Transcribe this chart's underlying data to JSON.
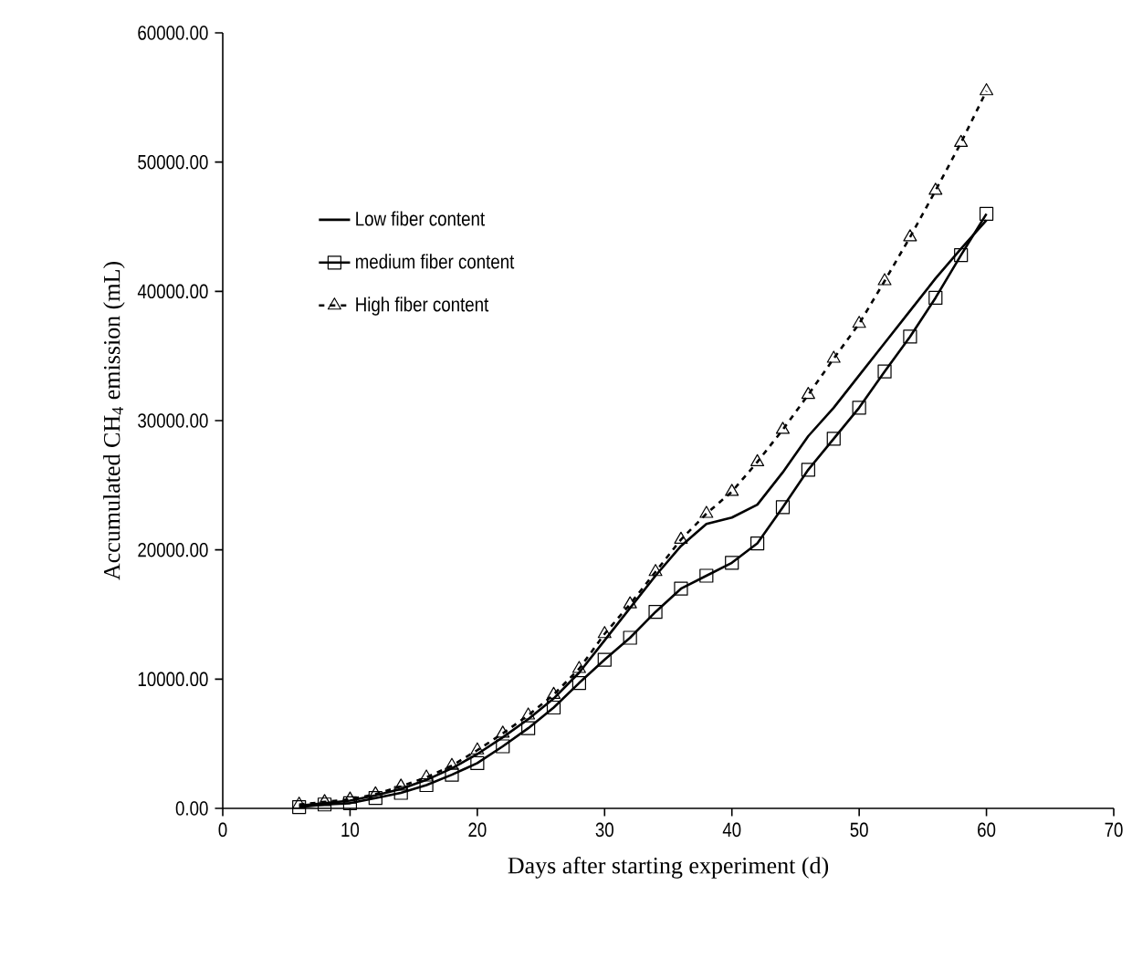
{
  "chart_data": {
    "type": "line",
    "xlabel": "Days after starting experiment (d)",
    "ylabel": "Accumulated CH$_{4}$ emission (mL)",
    "x": [
      6,
      8,
      10,
      12,
      14,
      16,
      18,
      20,
      22,
      24,
      26,
      28,
      30,
      32,
      34,
      36,
      38,
      40,
      42,
      44,
      46,
      48,
      50,
      52,
      54,
      56,
      58,
      60
    ],
    "series": [
      {
        "name": "Low fiber content",
        "color": "#000000",
        "marker": "none",
        "line_style": "solid",
        "values": [
          200,
          400,
          600,
          1000,
          1500,
          2200,
          3100,
          4200,
          5500,
          6900,
          8500,
          10500,
          13000,
          15500,
          18000,
          20300,
          22000,
          22500,
          23500,
          26000,
          28800,
          31000,
          33500,
          36000,
          38500,
          41000,
          43300,
          45500
        ]
      },
      {
        "name": "medium fiber content",
        "color": "#000000",
        "marker": "square",
        "line_style": "solid",
        "values": [
          100,
          300,
          400,
          800,
          1200,
          1800,
          2600,
          3500,
          4800,
          6200,
          7800,
          9700,
          11500,
          13200,
          15200,
          17000,
          18000,
          19000,
          20500,
          23300,
          26200,
          28600,
          31000,
          33800,
          36500,
          39500,
          42800,
          46000
        ]
      },
      {
        "name": "High fiber content",
        "color": "#000000",
        "marker": "triangle",
        "line_style": "dashed",
        "values": [
          300,
          500,
          700,
          1100,
          1700,
          2400,
          3300,
          4500,
          5800,
          7200,
          8800,
          10800,
          13500,
          15800,
          18300,
          20800,
          22800,
          24500,
          26800,
          29300,
          32000,
          34800,
          37500,
          40800,
          44200,
          47800,
          51500,
          55500
        ]
      }
    ],
    "xlim": [
      0,
      70
    ],
    "xticks": [
      0,
      10,
      20,
      30,
      40,
      50,
      60,
      70
    ],
    "ylim": [
      0,
      60000
    ],
    "yticks": [
      {
        "value": 0,
        "label": "0.00"
      },
      {
        "value": 10000,
        "label": "10000.00"
      },
      {
        "value": 20000,
        "label": "20000.00"
      },
      {
        "value": 30000,
        "label": "30000.00"
      },
      {
        "value": 40000,
        "label": "40000.00"
      },
      {
        "value": 50000,
        "label": "50000.00"
      },
      {
        "value": 60000,
        "label": "60000.00"
      }
    ],
    "grid": false,
    "legend": "top left"
  }
}
